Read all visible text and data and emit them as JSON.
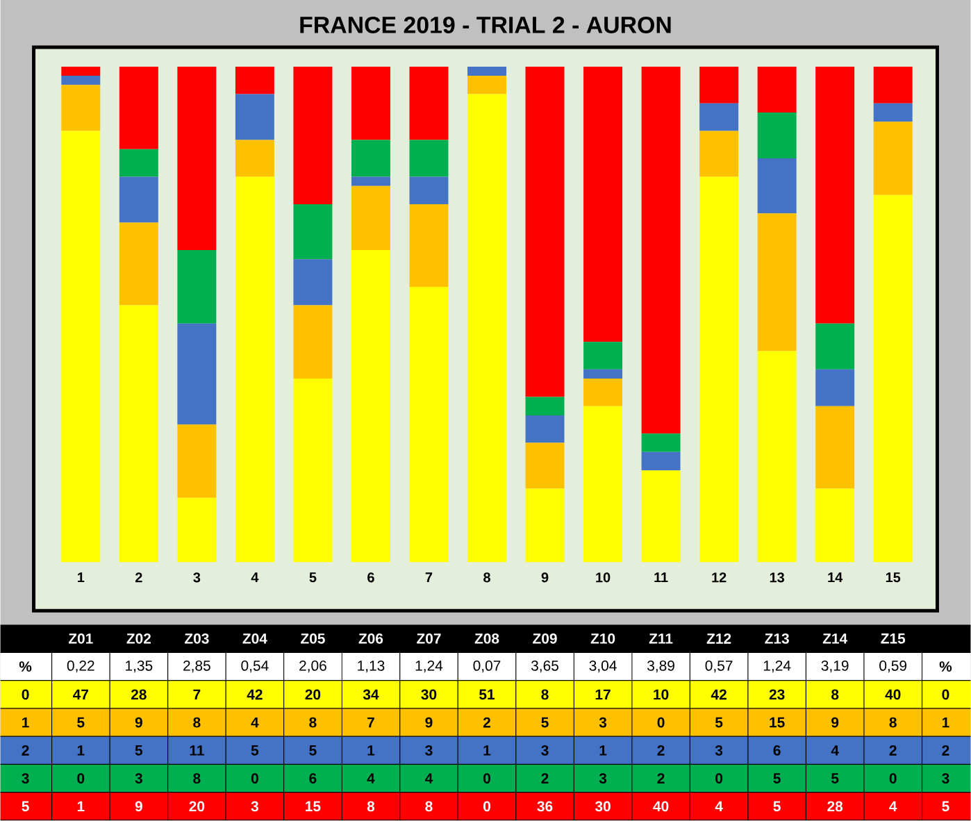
{
  "chart_data": {
    "type": "bar",
    "stacked": true,
    "title": "FRANCE 2019 - TRIAL 2 - AURON",
    "categories": [
      "1",
      "2",
      "3",
      "4",
      "5",
      "6",
      "7",
      "8",
      "9",
      "10",
      "11",
      "12",
      "13",
      "14",
      "15"
    ],
    "series": [
      {
        "name": "0",
        "color": "#ffff00",
        "values": [
          47,
          28,
          7,
          42,
          20,
          34,
          30,
          51,
          8,
          17,
          10,
          42,
          23,
          8,
          40
        ]
      },
      {
        "name": "1",
        "color": "#ffc000",
        "values": [
          5,
          9,
          8,
          4,
          8,
          7,
          9,
          2,
          5,
          3,
          0,
          5,
          15,
          9,
          8
        ]
      },
      {
        "name": "2",
        "color": "#4472c4",
        "values": [
          1,
          5,
          11,
          5,
          5,
          1,
          3,
          1,
          3,
          1,
          2,
          3,
          6,
          4,
          2
        ]
      },
      {
        "name": "3",
        "color": "#00b050",
        "values": [
          0,
          3,
          8,
          0,
          6,
          4,
          4,
          0,
          2,
          3,
          2,
          0,
          5,
          5,
          0
        ]
      },
      {
        "name": "5",
        "color": "#ff0000",
        "values": [
          1,
          9,
          20,
          3,
          15,
          8,
          8,
          0,
          36,
          30,
          40,
          4,
          5,
          28,
          4
        ]
      }
    ],
    "ylim": [
      0,
      54
    ],
    "tick_labels": "x",
    "data_labels": true,
    "annotations": [
      "Z01",
      "Z02",
      "Z03",
      "Z04",
      "Z05",
      "Z06",
      "Z07",
      "Z08",
      "Z09",
      "Z10",
      "Z11",
      "Z12",
      "Z13",
      "Z14",
      "Z15",
      "%",
      "0,22",
      "1,35",
      "2,85",
      "0,54",
      "2,06",
      "1,13",
      "1,24",
      "0,07",
      "3,65",
      "3,04",
      "3,89",
      "0,57",
      "1,24",
      "3,19",
      "0,59"
    ]
  }
}
